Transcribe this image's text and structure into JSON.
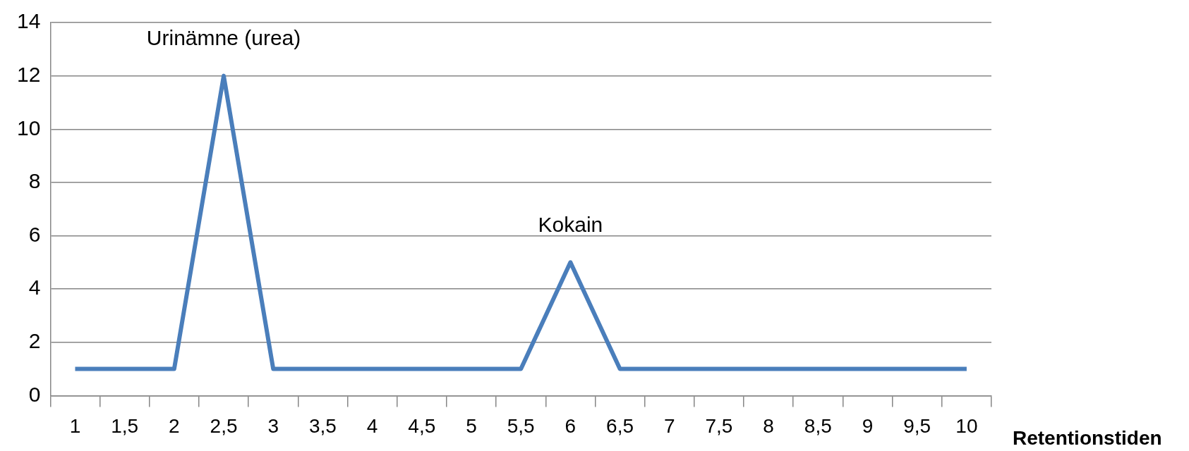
{
  "chart_data": {
    "type": "line",
    "xlabel": "Retentionstiden",
    "categories": [
      "1",
      "1,5",
      "2",
      "2,5",
      "3",
      "3,5",
      "4",
      "4,5",
      "5",
      "5,5",
      "6",
      "6,5",
      "7",
      "7,5",
      "8",
      "8,5",
      "9",
      "9,5",
      "10"
    ],
    "series": [
      {
        "color": "#4a7ebb",
        "values": [
          1,
          1,
          1,
          12,
          1,
          1,
          1,
          1,
          1,
          1,
          5,
          1,
          1,
          1,
          1,
          1,
          1,
          1,
          1
        ]
      }
    ],
    "ylim": [
      0,
      14
    ],
    "yticks": [
      0,
      2,
      4,
      6,
      8,
      10,
      12,
      14
    ],
    "annotations": [
      "Urinämne (urea)",
      "Kokain"
    ],
    "grid": "y",
    "legend": false,
    "marker": "none",
    "line_style": "solid"
  }
}
